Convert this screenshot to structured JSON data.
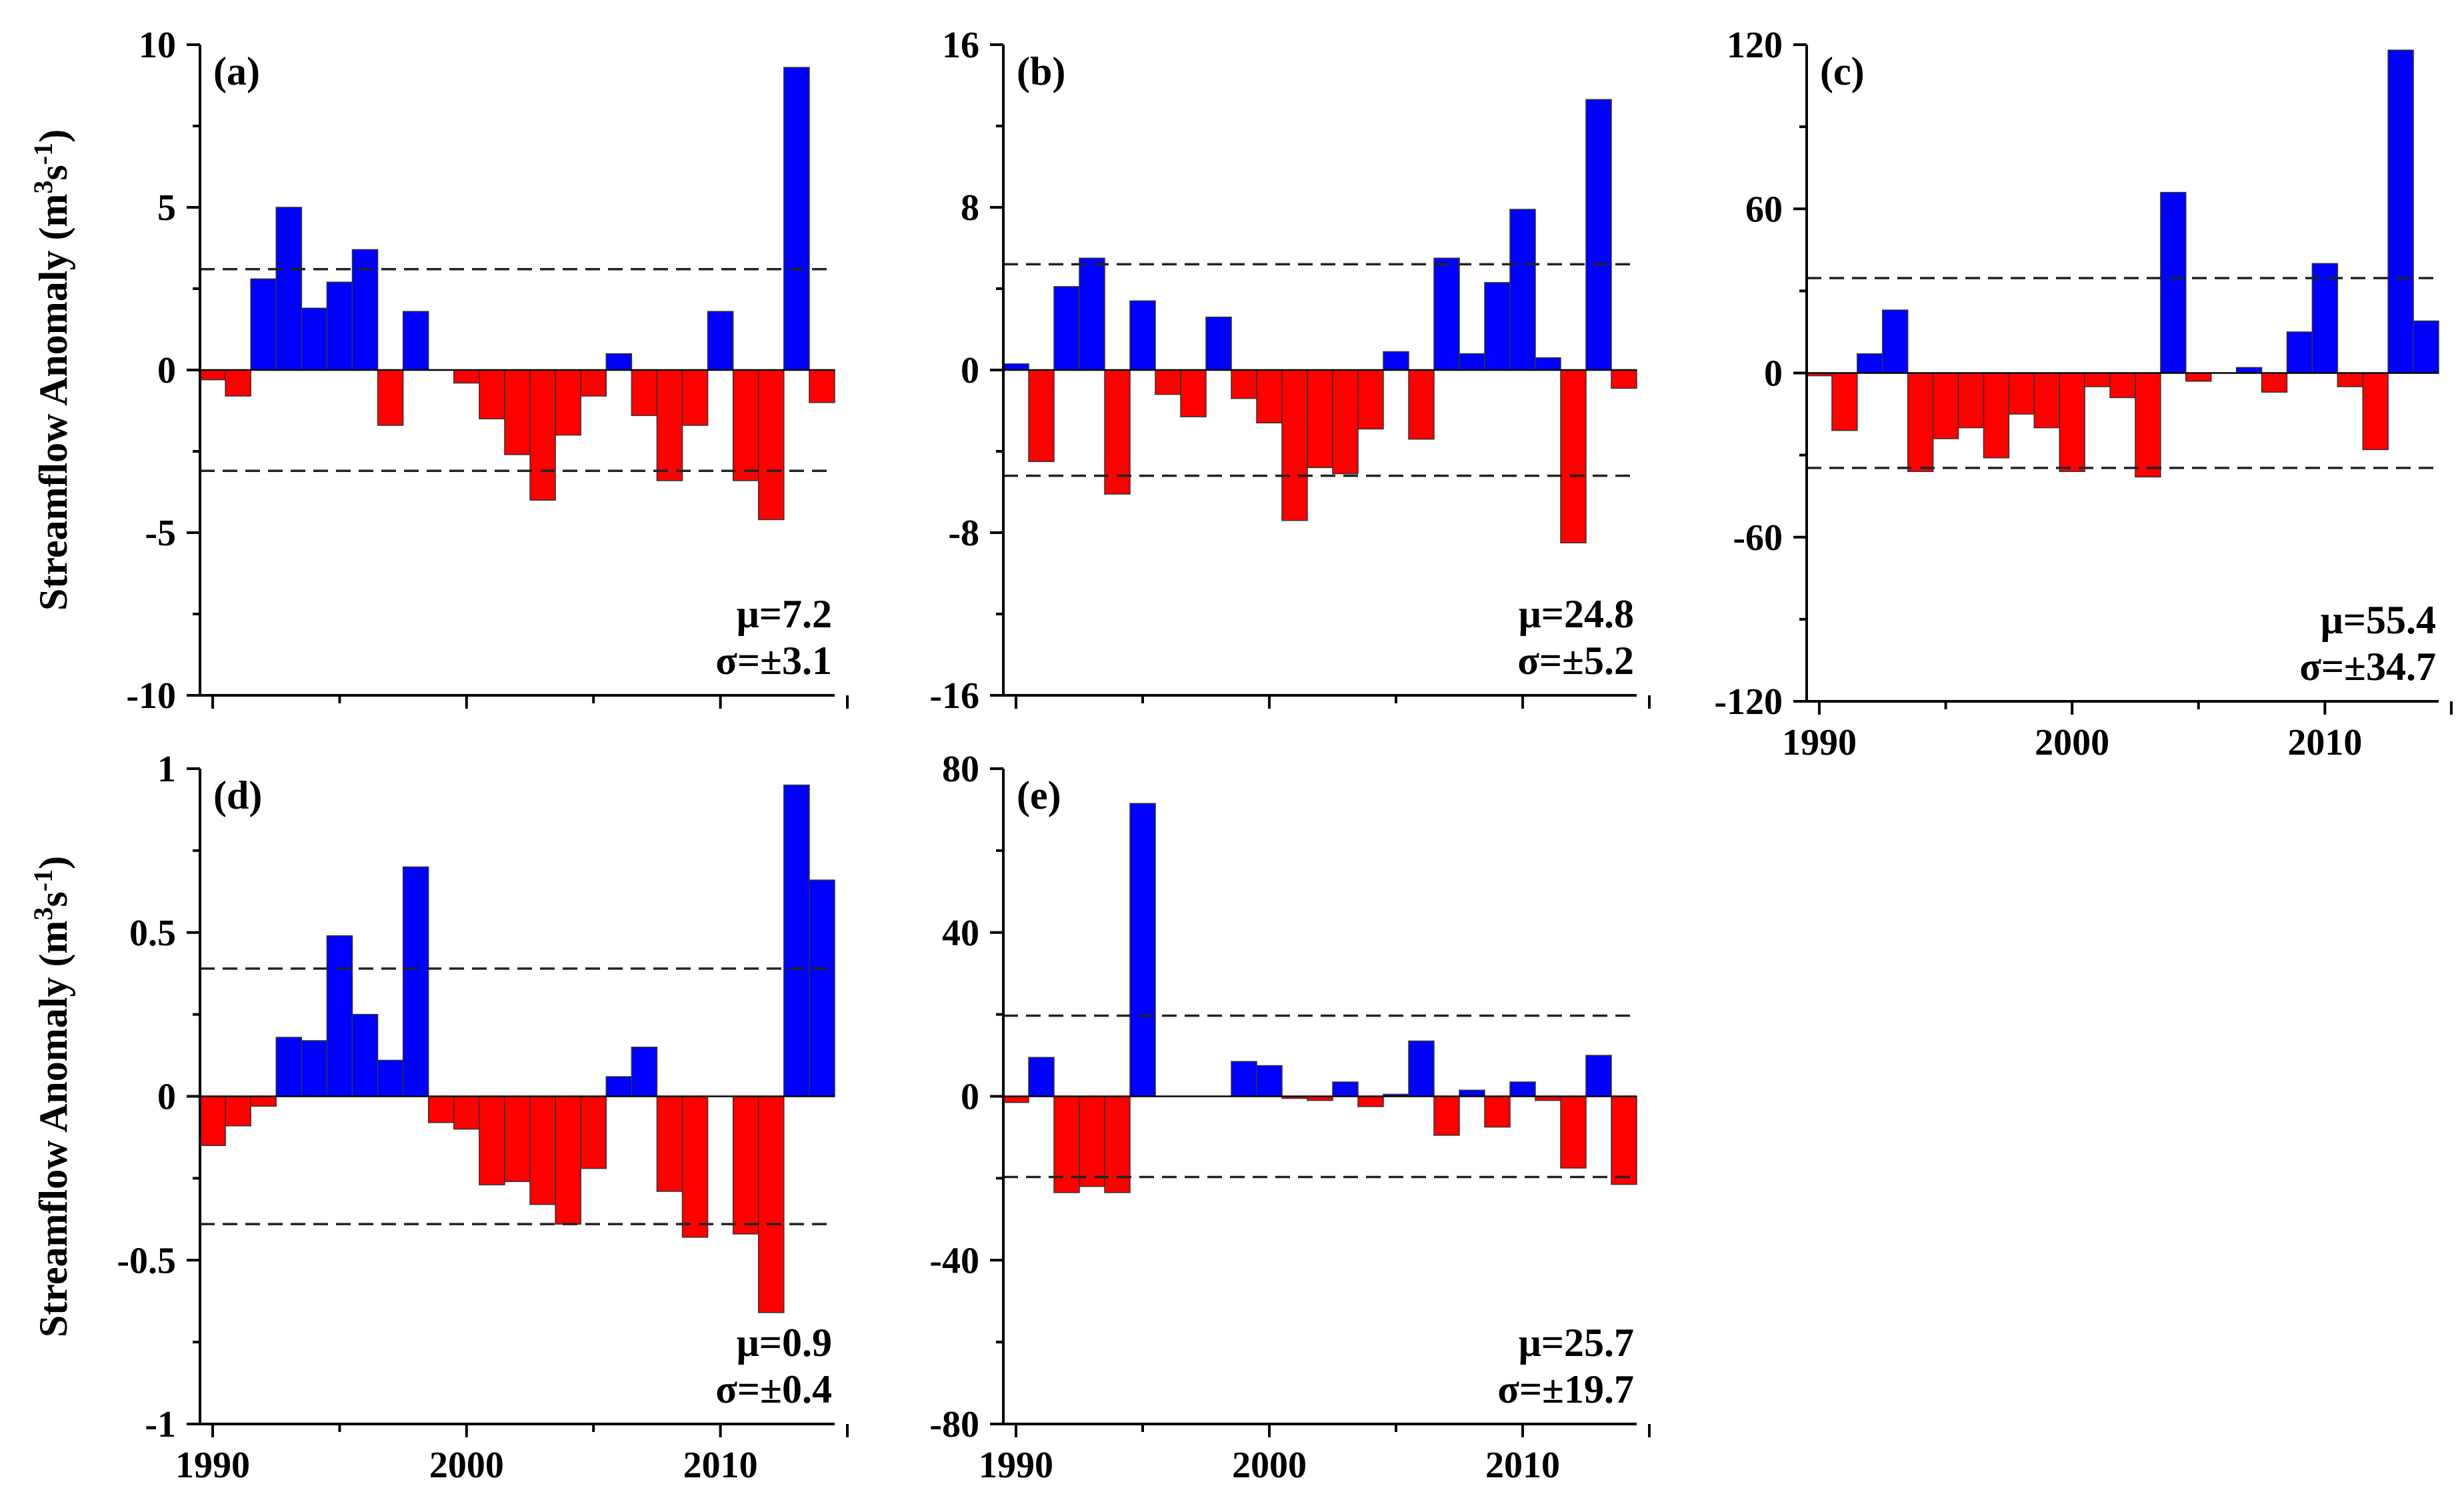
{
  "colors": {
    "positive": "#0000ff",
    "negative": "#ff0000",
    "axis": "#000000",
    "sigma_line": "#222222"
  },
  "y_axis_title": {
    "main": "Streamflow Anomaly (m",
    "sup1": "3",
    "mid": "s",
    "sup2": "-1",
    "end": ")"
  },
  "chart_data": [
    {
      "panel": "(a)",
      "type": "bar",
      "xlim": [
        1989.5,
        2014.5
      ],
      "xticks": [
        1990,
        2000,
        2010
      ],
      "ylim": [
        -10,
        10
      ],
      "yticks": [
        10,
        5,
        0,
        -5,
        -10
      ],
      "ytick_labels": [
        "10",
        "5",
        "0",
        "-5",
        "-10"
      ],
      "x": [
        1990,
        1991,
        1992,
        1993,
        1994,
        1995,
        1996,
        1997,
        1998,
        1999,
        2000,
        2001,
        2002,
        2003,
        2004,
        2005,
        2006,
        2007,
        2008,
        2009,
        2010,
        2011,
        2012,
        2013,
        2014
      ],
      "values": [
        -0.3,
        -0.8,
        2.8,
        5.0,
        1.9,
        2.7,
        3.7,
        -1.7,
        1.8,
        0.0,
        -0.4,
        -1.5,
        -2.6,
        -4.0,
        -2.0,
        -0.8,
        0.5,
        -1.4,
        -3.4,
        -1.7,
        1.8,
        -3.4,
        -4.6,
        9.3,
        -1.0
      ],
      "sigma": 3.1,
      "mu_label": "μ=7.2",
      "sigma_label": "σ=±3.1"
    },
    {
      "panel": "(b)",
      "type": "bar",
      "xlim": [
        1989.5,
        2014.5
      ],
      "xticks": [
        1990,
        2000,
        2010
      ],
      "ylim": [
        -16,
        16
      ],
      "yticks": [
        16,
        8,
        0,
        -8,
        -16
      ],
      "ytick_labels": [
        "16",
        "8",
        "0",
        "-8",
        "-16"
      ],
      "x": [
        1990,
        1991,
        1992,
        1993,
        1994,
        1995,
        1996,
        1997,
        1998,
        1999,
        2000,
        2001,
        2002,
        2003,
        2004,
        2005,
        2006,
        2007,
        2008,
        2009,
        2010,
        2011,
        2012,
        2013,
        2014
      ],
      "values": [
        0.3,
        -4.5,
        4.1,
        5.5,
        -6.1,
        3.4,
        -1.2,
        -2.3,
        2.6,
        -1.4,
        -2.6,
        -7.4,
        -4.8,
        -5.1,
        -2.9,
        0.9,
        -3.4,
        5.5,
        0.8,
        4.3,
        7.9,
        0.6,
        -8.5,
        13.3,
        -0.9
      ],
      "sigma": 5.2,
      "mu_label": "μ=24.8",
      "sigma_label": "σ=±5.2"
    },
    {
      "panel": "(c)",
      "type": "bar",
      "xlim": [
        1989.5,
        2014.5
      ],
      "xticks": [
        1990,
        2000,
        2010
      ],
      "ylim": [
        -120,
        120
      ],
      "yticks": [
        120,
        60,
        0,
        -60,
        -120
      ],
      "ytick_labels": [
        "120",
        "60",
        "0",
        "-60",
        "-120"
      ],
      "x": [
        1990,
        1991,
        1992,
        1993,
        1994,
        1995,
        1996,
        1997,
        1998,
        1999,
        2000,
        2001,
        2002,
        2003,
        2004,
        2005,
        2006,
        2007,
        2008,
        2009,
        2010,
        2011,
        2012,
        2013,
        2014
      ],
      "values": [
        -1,
        -21,
        7,
        23,
        -36,
        -24,
        -20,
        -31,
        -15,
        -20,
        -36,
        -5,
        -9,
        -38,
        66,
        -3,
        0,
        2,
        -7,
        15,
        40,
        -5,
        -28,
        118,
        19
      ],
      "sigma": 34.7,
      "mu_label": "μ=55.4",
      "sigma_label": "σ=±34.7"
    },
    {
      "panel": "(d)",
      "type": "bar",
      "xlim": [
        1989.5,
        2014.5
      ],
      "xticks": [
        1990,
        2000,
        2010
      ],
      "ylim": [
        -1,
        1
      ],
      "yticks": [
        1,
        0.5,
        0,
        -0.5,
        -1
      ],
      "ytick_labels": [
        "1",
        "0.5",
        "0",
        "-0.5",
        "-1"
      ],
      "x": [
        1990,
        1991,
        1992,
        1993,
        1994,
        1995,
        1996,
        1997,
        1998,
        1999,
        2000,
        2001,
        2002,
        2003,
        2004,
        2005,
        2006,
        2007,
        2008,
        2009,
        2010,
        2011,
        2012,
        2013,
        2014
      ],
      "values": [
        -0.15,
        -0.09,
        -0.03,
        0.18,
        0.17,
        0.49,
        0.25,
        0.11,
        0.7,
        -0.08,
        -0.1,
        -0.27,
        -0.26,
        -0.33,
        -0.39,
        -0.22,
        0.06,
        0.15,
        -0.29,
        -0.43,
        0.0,
        -0.42,
        -0.66,
        0.95,
        0.66
      ],
      "sigma": 0.39,
      "mu_label": "μ=0.9",
      "sigma_label": "σ=±0.4"
    },
    {
      "panel": "(e)",
      "type": "bar",
      "xlim": [
        1989.5,
        2014.5
      ],
      "xticks": [
        1990,
        2000,
        2010
      ],
      "ylim": [
        -80,
        80
      ],
      "yticks": [
        80,
        40,
        0,
        -40,
        -80
      ],
      "ytick_labels": [
        "80",
        "40",
        "0",
        "-40",
        "-80"
      ],
      "x": [
        1990,
        1991,
        1992,
        1993,
        1994,
        1995,
        1996,
        1997,
        1998,
        1999,
        2000,
        2001,
        2002,
        2003,
        2004,
        2005,
        2006,
        2007,
        2008,
        2009,
        2010,
        2011,
        2012,
        2013,
        2014
      ],
      "values": [
        -1.5,
        9.5,
        -23.5,
        -22,
        -23.5,
        71.5,
        0,
        0,
        0,
        8.5,
        7.5,
        -0.5,
        -1,
        3.5,
        -2.5,
        0.5,
        13.5,
        -9.5,
        1.5,
        -7.5,
        3.5,
        -1,
        -17.5,
        10,
        -21.5
      ],
      "sigma": 19.7,
      "mu_label": "μ=25.7",
      "sigma_label": "σ=±19.7"
    }
  ]
}
